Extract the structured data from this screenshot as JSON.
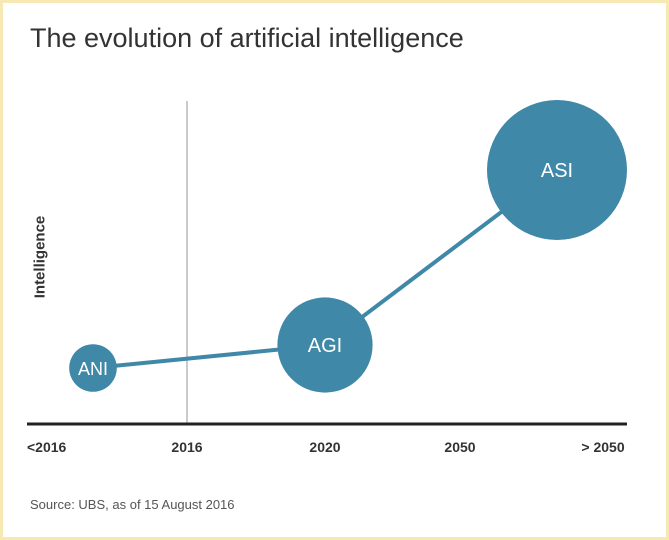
{
  "title": "The evolution of artificial intelligence",
  "source": "Source: UBS, as of 15 August 2016",
  "chart_data": {
    "type": "scatter",
    "title": "The evolution of artificial intelligence",
    "xlabel": "",
    "ylabel": "Intelligence",
    "categories": [
      "<2016",
      "2016",
      "2020",
      "2050",
      "> 2050"
    ],
    "reference_line": "2016",
    "grid": false,
    "points": [
      {
        "label": "ANI",
        "x": "<2016",
        "relative_size": 0.34
      },
      {
        "label": "AGI",
        "x": "2020",
        "relative_size": 0.68
      },
      {
        "label": "ASI",
        "x": "> 2050",
        "relative_size": 1.0
      }
    ],
    "colors": {
      "bubble": "#3f88a8",
      "axis": "#222222",
      "reference_line": "#b8b8b8"
    }
  }
}
